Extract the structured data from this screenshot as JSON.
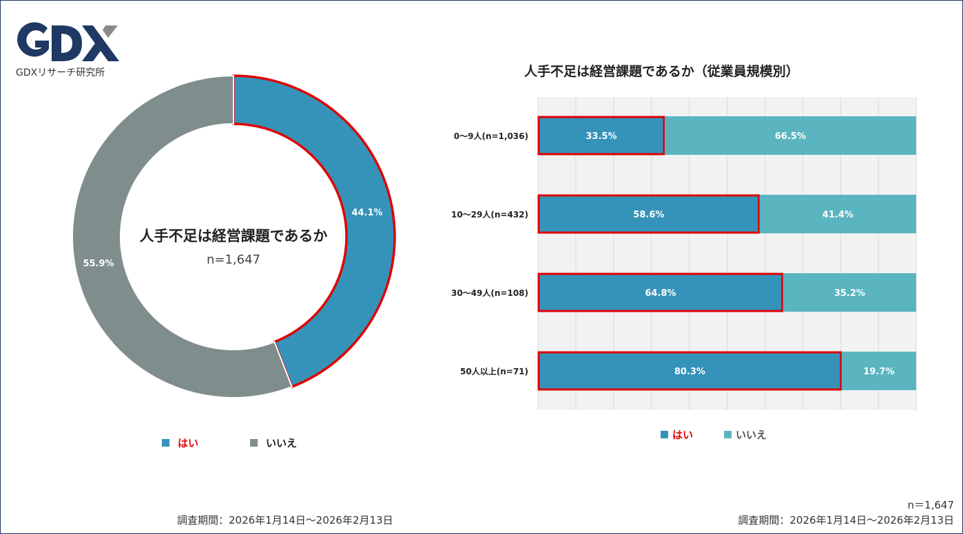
{
  "logo": {
    "mark": "GDX",
    "subtitle": "GDXリサーチ研究所",
    "color": "#1f3864",
    "accent": "#8a8a8a"
  },
  "donut": {
    "title": "人手不足は経営課題であるか",
    "n_label": "n=1,647",
    "legend": [
      {
        "label": "はい",
        "color": "#3593ba",
        "label_color": "#e00000"
      },
      {
        "label": "いいえ",
        "color": "#7f8d8c",
        "label_color": "#222222"
      }
    ],
    "footer": "調査期間：2026年1月14日～2026年2月13日"
  },
  "bar_chart": {
    "title": "人手不足は経営課題であるか（従業員規模別）",
    "legend": [
      {
        "label": "はい",
        "color": "#3593ba",
        "label_color": "#e00000"
      },
      {
        "label": "いいえ",
        "color": "#5ab5c0",
        "label_color": "#555555"
      }
    ],
    "footer_n": "n＝1,647",
    "footer": "調査期間：2026年1月14日～2026年2月13日"
  },
  "chart_data": [
    {
      "type": "pie",
      "title": "人手不足は経営課題であるか",
      "labels": [
        "はい",
        "いいえ"
      ],
      "values": [
        44.1,
        55.9
      ],
      "value_labels": [
        "44.1%",
        "55.9%"
      ],
      "colors": [
        "#3593ba",
        "#7f8d8c"
      ],
      "highlight": "はい",
      "highlight_color": "#e00000",
      "legend": "bottom"
    },
    {
      "type": "bar",
      "orientation": "horizontal",
      "stacked": true,
      "title": "人手不足は経営課題であるか（従業員規模別）",
      "categories": [
        "0～9人(n=1,036)",
        "10～29人(n=432)",
        "30～49人(n=108)",
        "50人以上(n=71)"
      ],
      "series": [
        {
          "name": "はい",
          "values": [
            33.5,
            58.6,
            64.8,
            80.3
          ],
          "labels": [
            "33.5%",
            "58.6%",
            "64.8%",
            "80.3%"
          ],
          "color": "#3593ba"
        },
        {
          "name": "いいえ",
          "values": [
            66.5,
            41.4,
            35.2,
            19.7
          ],
          "labels": [
            "66.5%",
            "41.4%",
            "35.2%",
            "19.7%"
          ],
          "color": "#5ab5c0"
        }
      ],
      "xlim": [
        0,
        100
      ],
      "grid": true,
      "legend": "bottom",
      "highlight_series": "はい",
      "highlight_color": "#e00000"
    }
  ]
}
